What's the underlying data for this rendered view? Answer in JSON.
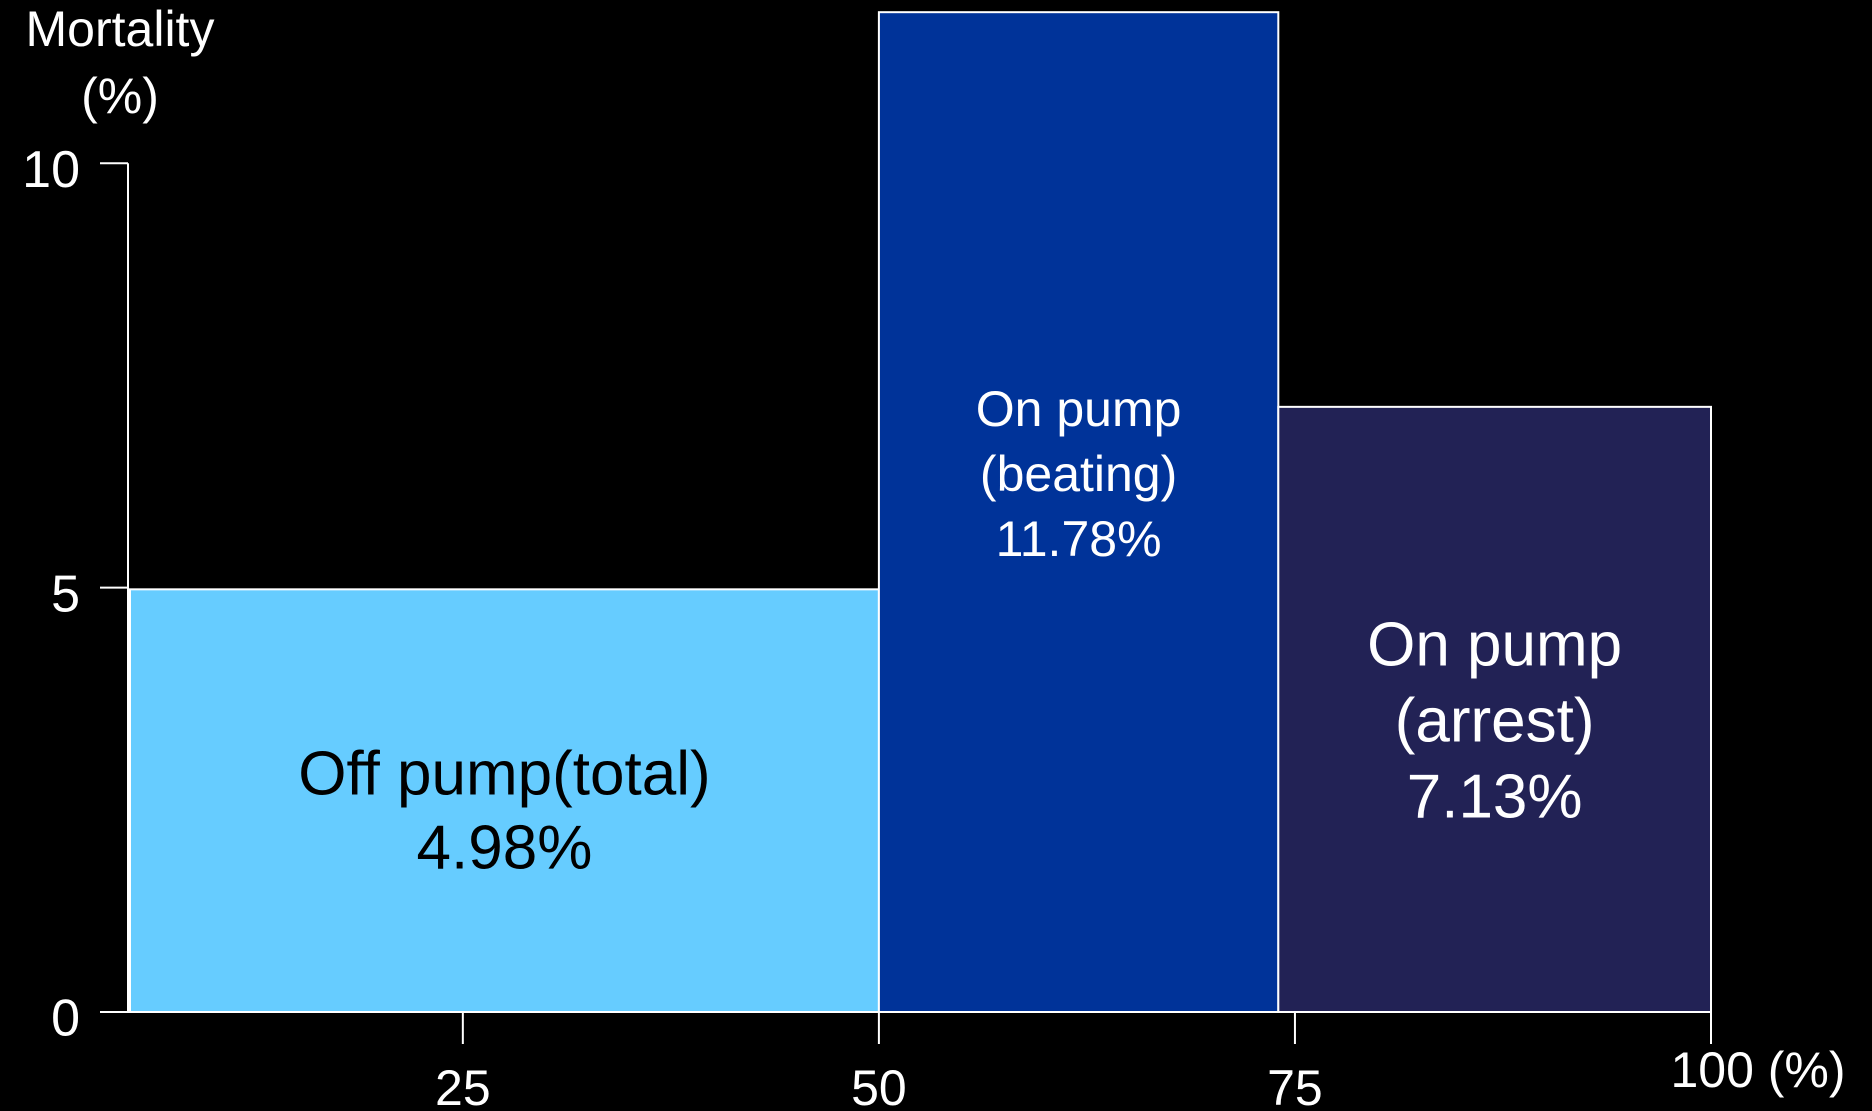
{
  "chart_data": {
    "type": "variable-width-bar",
    "ylabel": [
      "Mortality",
      "(%)"
    ],
    "categories": [
      [
        "Off pump(total)"
      ],
      [
        "On pump",
        "(beating)"
      ],
      [
        "On pump",
        "(arrest)"
      ]
    ],
    "bins": [
      5,
      50,
      74,
      100
    ],
    "values": [
      4.98,
      11.78,
      7.13
    ],
    "value_labels": [
      "4.98%",
      "11.78%",
      "7.13%"
    ],
    "colors": [
      "#66ccff",
      "#003399",
      "#222255"
    ],
    "label_colors": [
      "#000000",
      "#ffffff",
      "#ffffff"
    ],
    "xlim": [
      5,
      100
    ],
    "xticks": [
      25,
      50,
      75,
      {
        "value": 100,
        "label": "100 (%)"
      }
    ],
    "ylim": [
      0,
      11.9
    ],
    "yticks": [
      0,
      5,
      10
    ]
  }
}
